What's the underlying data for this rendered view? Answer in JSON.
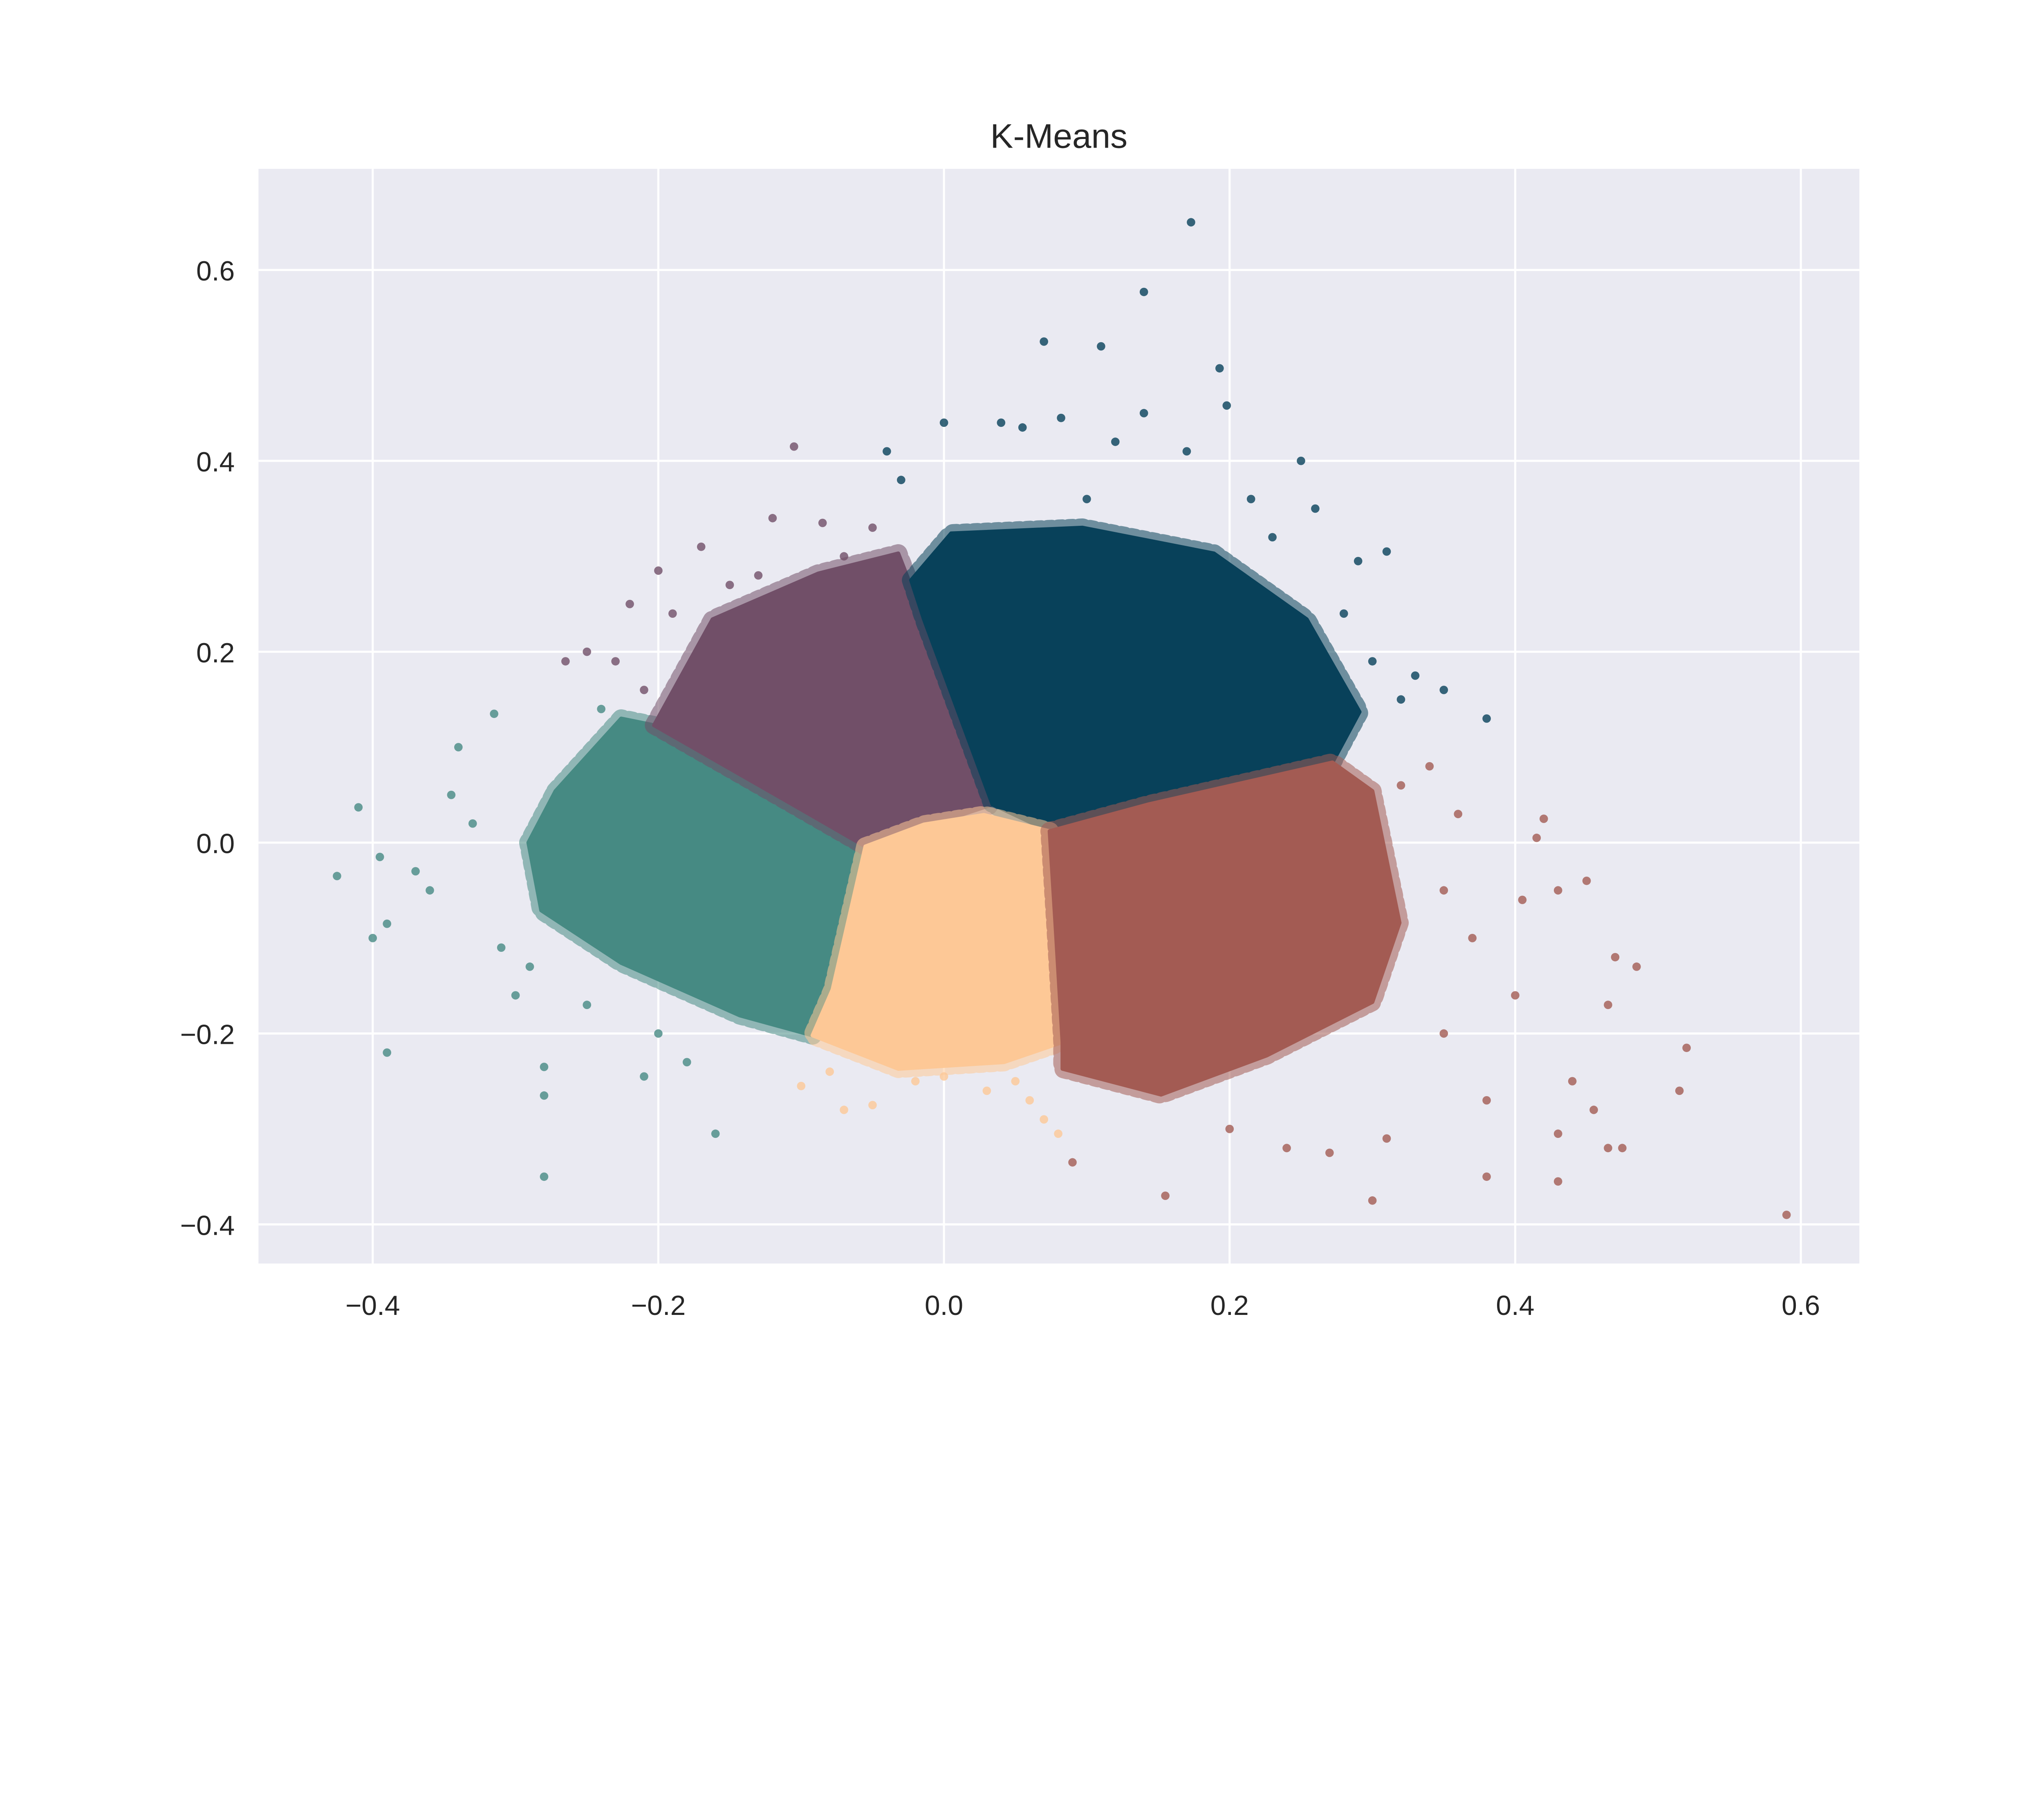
{
  "chart_data": {
    "type": "scatter",
    "title": "K-Means",
    "xlabel": "",
    "ylabel": "",
    "xlim": [
      -0.48,
      0.641
    ],
    "ylim": [
      -0.441,
      0.706
    ],
    "xticks": [
      -0.4,
      -0.2,
      0.0,
      0.2,
      0.4,
      0.6
    ],
    "xtick_labels": [
      "−0.4",
      "−0.2",
      "0.0",
      "0.2",
      "0.4",
      "0.6"
    ],
    "yticks": [
      -0.4,
      -0.2,
      0.0,
      0.2,
      0.4,
      0.6
    ],
    "ytick_labels": [
      "−0.4",
      "−0.2",
      "0.0",
      "0.2",
      "0.4",
      "0.6"
    ],
    "grid": true,
    "background_color": "#eaeaf2",
    "grid_color": "#ffffff",
    "clusters": [
      {
        "color": "#468a83",
        "core_region": [
          [
            -0.272,
            0.054
          ],
          [
            -0.226,
            0.13
          ],
          [
            -0.203,
            0.123
          ],
          [
            -0.106,
            0.04
          ],
          [
            -0.055,
            -0.004
          ],
          [
            -0.078,
            -0.154
          ],
          [
            -0.092,
            -0.202
          ],
          [
            -0.143,
            -0.181
          ],
          [
            -0.226,
            -0.126
          ],
          [
            -0.282,
            -0.071
          ],
          [
            -0.291,
            0.0
          ]
        ],
        "points": [
          [
            -0.425,
            -0.035
          ],
          [
            -0.41,
            0.037
          ],
          [
            -0.39,
            -0.22
          ],
          [
            -0.28,
            -0.235
          ],
          [
            -0.28,
            -0.265
          ],
          [
            -0.28,
            -0.35
          ],
          [
            -0.16,
            -0.305
          ],
          [
            -0.395,
            -0.015
          ],
          [
            -0.4,
            -0.1
          ],
          [
            -0.39,
            -0.085
          ],
          [
            -0.315,
            0.135
          ],
          [
            -0.34,
            0.1
          ],
          [
            -0.345,
            0.05
          ],
          [
            -0.37,
            -0.03
          ],
          [
            -0.36,
            -0.05
          ],
          [
            -0.3,
            -0.16
          ],
          [
            -0.21,
            -0.245
          ],
          [
            -0.25,
            -0.17
          ],
          [
            -0.2,
            -0.2
          ],
          [
            -0.33,
            0.02
          ],
          [
            -0.31,
            -0.11
          ],
          [
            -0.24,
            0.14
          ],
          [
            -0.29,
            -0.13
          ],
          [
            -0.18,
            -0.23
          ]
        ]
      },
      {
        "color": "#714f68",
        "core_region": [
          [
            -0.203,
            0.123
          ],
          [
            -0.162,
            0.234
          ],
          [
            -0.088,
            0.282
          ],
          [
            -0.032,
            0.303
          ],
          [
            -0.014,
            0.234
          ],
          [
            0.034,
            0.04
          ],
          [
            -0.055,
            -0.004
          ],
          [
            -0.106,
            0.04
          ]
        ],
        "points": [
          [
            -0.105,
            0.415
          ],
          [
            -0.12,
            0.34
          ],
          [
            -0.085,
            0.335
          ],
          [
            -0.17,
            0.31
          ],
          [
            -0.2,
            0.285
          ],
          [
            -0.22,
            0.25
          ],
          [
            -0.25,
            0.2
          ],
          [
            -0.265,
            0.19
          ],
          [
            -0.23,
            0.19
          ],
          [
            -0.05,
            0.33
          ],
          [
            -0.07,
            0.3
          ],
          [
            -0.13,
            0.28
          ],
          [
            -0.19,
            0.24
          ],
          [
            -0.15,
            0.27
          ],
          [
            -0.21,
            0.16
          ]
        ]
      },
      {
        "color": "#08415a",
        "core_region": [
          [
            -0.023,
            0.275
          ],
          [
            0.005,
            0.324
          ],
          [
            0.097,
            0.33
          ],
          [
            0.189,
            0.303
          ],
          [
            0.254,
            0.234
          ],
          [
            0.291,
            0.137
          ],
          [
            0.272,
            0.084
          ],
          [
            0.143,
            0.04
          ],
          [
            0.074,
            0.012
          ],
          [
            0.034,
            0.04
          ],
          [
            -0.014,
            0.234
          ]
        ],
        "points": [
          [
            0.173,
            0.65
          ],
          [
            0.14,
            0.577
          ],
          [
            0.07,
            0.525
          ],
          [
            0.11,
            0.52
          ],
          [
            0.193,
            0.497
          ],
          [
            0.198,
            0.458
          ],
          [
            0.082,
            0.445
          ],
          [
            0.14,
            0.45
          ],
          [
            0.0,
            0.44
          ],
          [
            0.04,
            0.44
          ],
          [
            0.055,
            0.435
          ],
          [
            0.25,
            0.4
          ],
          [
            0.31,
            0.305
          ],
          [
            0.38,
            0.13
          ],
          [
            0.35,
            0.16
          ],
          [
            0.33,
            0.175
          ],
          [
            -0.04,
            0.41
          ],
          [
            0.12,
            0.42
          ],
          [
            0.17,
            0.41
          ],
          [
            0.215,
            0.36
          ],
          [
            0.29,
            0.295
          ],
          [
            0.3,
            0.19
          ],
          [
            0.26,
            0.35
          ],
          [
            0.1,
            0.36
          ],
          [
            -0.03,
            0.38
          ],
          [
            0.32,
            0.15
          ],
          [
            0.28,
            0.24
          ],
          [
            0.23,
            0.32
          ]
        ]
      },
      {
        "color": "#fdc896",
        "core_region": [
          [
            -0.055,
            -0.004
          ],
          [
            -0.014,
            0.019
          ],
          [
            0.028,
            0.029
          ],
          [
            0.074,
            0.012
          ],
          [
            0.078,
            -0.084
          ],
          [
            0.083,
            -0.209
          ],
          [
            0.042,
            -0.23
          ],
          [
            -0.032,
            -0.237
          ],
          [
            -0.092,
            -0.202
          ],
          [
            -0.078,
            -0.154
          ]
        ],
        "points": [
          [
            -0.1,
            -0.255
          ],
          [
            -0.07,
            -0.28
          ],
          [
            -0.05,
            -0.275
          ],
          [
            0.08,
            -0.305
          ],
          [
            0.07,
            -0.29
          ],
          [
            -0.02,
            -0.25
          ],
          [
            0.03,
            -0.26
          ],
          [
            0.06,
            -0.27
          ],
          [
            -0.08,
            -0.24
          ],
          [
            0.0,
            -0.245
          ],
          [
            0.05,
            -0.25
          ]
        ]
      },
      {
        "color": "#a35b53",
        "core_region": [
          [
            0.074,
            0.012
          ],
          [
            0.143,
            0.04
          ],
          [
            0.272,
            0.084
          ],
          [
            0.3,
            0.054
          ],
          [
            0.319,
            -0.084
          ],
          [
            0.3,
            -0.167
          ],
          [
            0.226,
            -0.223
          ],
          [
            0.152,
            -0.264
          ],
          [
            0.083,
            -0.237
          ],
          [
            0.083,
            -0.209
          ],
          [
            0.078,
            -0.084
          ]
        ],
        "points": [
          [
            0.59,
            -0.39
          ],
          [
            0.52,
            -0.215
          ],
          [
            0.515,
            -0.26
          ],
          [
            0.485,
            -0.13
          ],
          [
            0.47,
            -0.12
          ],
          [
            0.465,
            -0.17
          ],
          [
            0.475,
            -0.32
          ],
          [
            0.465,
            -0.32
          ],
          [
            0.455,
            -0.28
          ],
          [
            0.44,
            -0.25
          ],
          [
            0.43,
            -0.305
          ],
          [
            0.43,
            -0.355
          ],
          [
            0.45,
            -0.04
          ],
          [
            0.43,
            -0.05
          ],
          [
            0.42,
            0.025
          ],
          [
            0.405,
            -0.06
          ],
          [
            0.415,
            0.005
          ],
          [
            0.38,
            -0.35
          ],
          [
            0.38,
            -0.27
          ],
          [
            0.3,
            -0.375
          ],
          [
            0.155,
            -0.37
          ],
          [
            0.09,
            -0.335
          ],
          [
            0.27,
            -0.325
          ],
          [
            0.35,
            -0.2
          ],
          [
            0.4,
            -0.16
          ],
          [
            0.37,
            -0.1
          ],
          [
            0.36,
            0.03
          ],
          [
            0.31,
            -0.31
          ],
          [
            0.32,
            0.06
          ],
          [
            0.34,
            0.08
          ],
          [
            0.35,
            -0.05
          ],
          [
            0.2,
            -0.3
          ],
          [
            0.24,
            -0.32
          ]
        ]
      }
    ]
  }
}
